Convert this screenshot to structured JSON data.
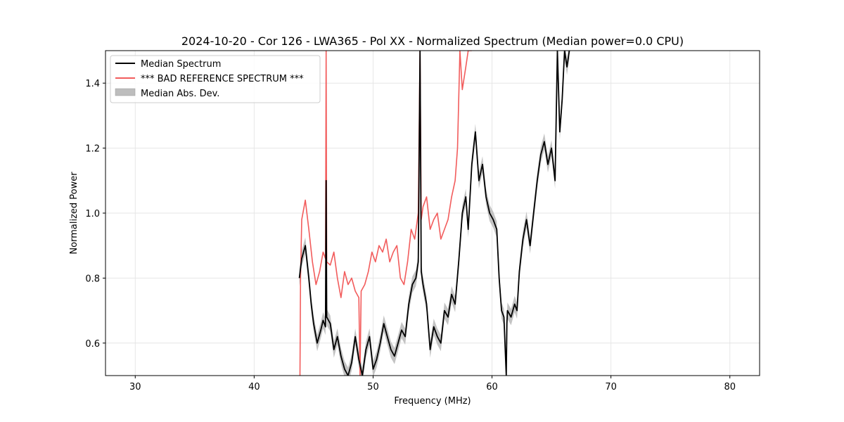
{
  "chart_data": {
    "type": "line",
    "title": "2024-10-20 - Cor 126 - LWA365 - Pol XX - Normalized Spectrum (Median power=0.0 CPU)",
    "xlabel": "Frequency (MHz)",
    "ylabel": "Normalized Power",
    "xlim": [
      27.5,
      82.5
    ],
    "ylim": [
      0.5,
      1.5
    ],
    "xticks": [
      30,
      40,
      50,
      60,
      70,
      80
    ],
    "yticks": [
      0.6,
      0.8,
      1.0,
      1.2,
      1.4
    ],
    "xtick_labels": [
      "30",
      "40",
      "50",
      "60",
      "70",
      "80"
    ],
    "ytick_labels": [
      "0.6",
      "0.8",
      "1.0",
      "1.2",
      "1.4"
    ],
    "grid": true,
    "legend_position": "top-left",
    "legend": [
      {
        "label": "Median Spectrum",
        "kind": "line",
        "color": "#000000"
      },
      {
        "label": "*** BAD REFERENCE SPECTRUM ***",
        "kind": "line",
        "color": "#f25c5c"
      },
      {
        "label": "Median Abs. Dev.",
        "kind": "patch",
        "color": "#bdbdbd"
      }
    ],
    "series": [
      {
        "name": "Median Spectrum",
        "color": "#000000",
        "x": [
          43.8,
          44.0,
          44.3,
          44.6,
          44.8,
          45.0,
          45.3,
          45.6,
          45.8,
          46.0,
          46.05,
          46.1,
          46.4,
          46.7,
          47.0,
          47.3,
          47.6,
          47.9,
          48.2,
          48.5,
          48.8,
          49.1,
          49.4,
          49.7,
          50.0,
          50.3,
          50.6,
          50.9,
          51.2,
          51.5,
          51.8,
          52.1,
          52.4,
          52.7,
          53.0,
          53.3,
          53.6,
          53.8,
          53.95,
          54.05,
          54.2,
          54.5,
          54.8,
          55.1,
          55.4,
          55.7,
          56.0,
          56.3,
          56.6,
          56.9,
          57.2,
          57.5,
          57.8,
          58.0,
          58.3,
          58.6,
          58.9,
          59.2,
          59.5,
          59.8,
          60.1,
          60.4,
          60.6,
          60.8,
          61.0,
          61.2,
          61.25,
          61.3,
          61.6,
          61.9,
          62.1,
          62.3,
          62.6,
          62.9,
          63.2,
          63.5,
          63.8,
          64.1,
          64.4,
          64.7,
          65.0,
          65.3,
          65.5,
          65.7,
          65.9,
          66.1,
          66.3,
          66.5
        ],
        "y": [
          0.8,
          0.86,
          0.9,
          0.8,
          0.72,
          0.66,
          0.6,
          0.64,
          0.67,
          0.65,
          1.1,
          0.68,
          0.66,
          0.58,
          0.62,
          0.56,
          0.52,
          0.5,
          0.54,
          0.62,
          0.55,
          0.5,
          0.58,
          0.62,
          0.52,
          0.55,
          0.6,
          0.66,
          0.62,
          0.58,
          0.56,
          0.6,
          0.64,
          0.62,
          0.72,
          0.78,
          0.8,
          0.85,
          1.5,
          0.82,
          0.78,
          0.72,
          0.58,
          0.65,
          0.62,
          0.6,
          0.7,
          0.68,
          0.75,
          0.72,
          0.85,
          1.0,
          1.05,
          0.95,
          1.15,
          1.25,
          1.1,
          1.15,
          1.05,
          1.0,
          0.98,
          0.95,
          0.8,
          0.7,
          0.68,
          0.5,
          0.66,
          0.7,
          0.68,
          0.72,
          0.7,
          0.82,
          0.92,
          0.98,
          0.9,
          1.0,
          1.1,
          1.18,
          1.22,
          1.15,
          1.2,
          1.1,
          1.5,
          1.25,
          1.35,
          1.5,
          1.45,
          1.5
        ]
      },
      {
        "name": "*** BAD REFERENCE SPECTRUM ***",
        "color": "#f25c5c",
        "x": [
          43.85,
          43.9,
          44.0,
          44.3,
          44.6,
          44.9,
          45.2,
          45.5,
          45.8,
          46.0,
          46.05,
          46.1,
          46.4,
          46.7,
          47.0,
          47.3,
          47.6,
          47.9,
          48.2,
          48.5,
          48.8,
          48.9,
          49.0,
          49.3,
          49.6,
          49.9,
          50.2,
          50.5,
          50.8,
          51.1,
          51.4,
          51.7,
          52.0,
          52.3,
          52.6,
          52.9,
          53.2,
          53.5,
          53.8,
          53.95,
          54.05,
          54.2,
          54.5,
          54.8,
          55.1,
          55.4,
          55.7,
          56.0,
          56.3,
          56.6,
          56.9,
          57.1,
          57.3,
          57.5,
          57.8,
          58.0,
          58.3
        ],
        "y": [
          0.5,
          0.8,
          0.98,
          1.04,
          0.95,
          0.85,
          0.78,
          0.82,
          0.88,
          0.86,
          1.5,
          0.85,
          0.84,
          0.88,
          0.8,
          0.74,
          0.82,
          0.78,
          0.8,
          0.76,
          0.74,
          0.5,
          0.76,
          0.78,
          0.82,
          0.88,
          0.85,
          0.9,
          0.88,
          0.92,
          0.85,
          0.88,
          0.9,
          0.8,
          0.78,
          0.85,
          0.95,
          0.92,
          1.0,
          1.5,
          0.98,
          1.02,
          1.05,
          0.95,
          0.98,
          1.0,
          0.92,
          0.95,
          0.98,
          1.05,
          1.1,
          1.2,
          1.5,
          1.38,
          1.45,
          1.5,
          1.5
        ]
      }
    ],
    "band": {
      "name": "Median Abs. Dev.",
      "color": "#bdbdbd",
      "half_width": 0.025
    }
  }
}
